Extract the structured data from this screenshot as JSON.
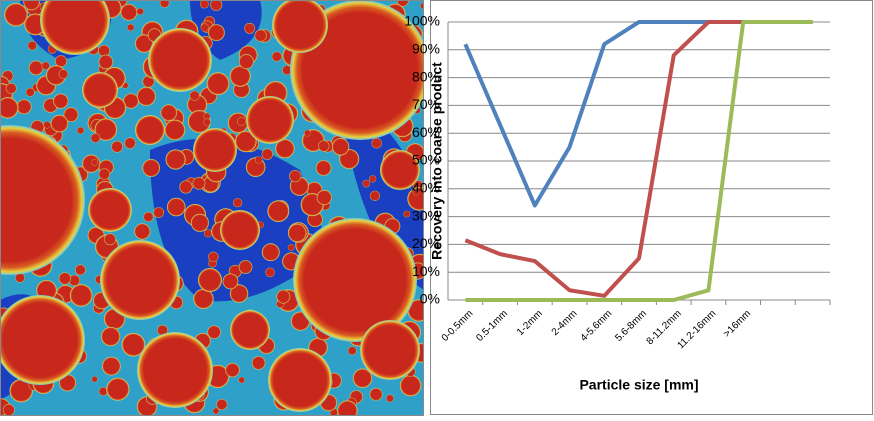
{
  "chart_data": {
    "type": "line",
    "x_label": "Particle size [mm]",
    "y_label": "Recovery into coarse product",
    "categories": [
      "0-0.5mm",
      "0.5-1mm",
      "1-2mm",
      "2-4mm",
      "4-5.6mm",
      "5.6-8mm",
      "8-11.2mm",
      "11.2-16mm",
      ">16mm",
      null,
      null
    ],
    "series": [
      {
        "color": "#4f81bd",
        "values": [
          92,
          63,
          34,
          55,
          92,
          100,
          100,
          100,
          100,
          100,
          100
        ]
      },
      {
        "color": "#c0504d",
        "values": [
          21.5,
          16.5,
          14,
          3.5,
          1.5,
          15,
          88,
          100,
          100,
          100,
          100
        ]
      },
      {
        "color": "#9bbb59",
        "values": [
          0,
          0,
          0,
          0,
          0,
          0,
          0,
          3.5,
          100,
          100,
          100
        ]
      }
    ],
    "ylim": [
      0,
      100
    ],
    "yticks": [
      {
        "value": 0,
        "label": "0%"
      },
      {
        "value": 10,
        "label": "10%"
      },
      {
        "value": 20,
        "label": "20%"
      },
      {
        "value": 30,
        "label": "30%"
      },
      {
        "value": 40,
        "label": "40%"
      },
      {
        "value": 50,
        "label": "50%"
      },
      {
        "value": 60,
        "label": "60%"
      },
      {
        "value": 70,
        "label": "70%"
      },
      {
        "value": 80,
        "label": "80%"
      },
      {
        "value": 90,
        "label": "90%"
      },
      {
        "value": 100,
        "label": "100%"
      }
    ],
    "grid": true
  }
}
